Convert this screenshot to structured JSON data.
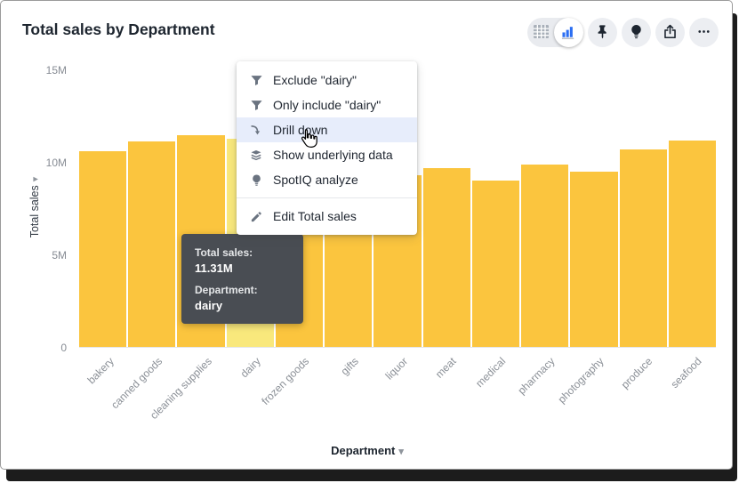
{
  "header": {
    "title": "Total sales by Department"
  },
  "toolbar": {
    "view_toggle": {
      "options": [
        {
          "name": "table-view",
          "icon": "table-icon",
          "selected": false
        },
        {
          "name": "chart-view",
          "icon": "bar-chart-icon",
          "selected": true
        }
      ]
    },
    "buttons": [
      {
        "name": "pin",
        "icon": "pin-icon"
      },
      {
        "name": "spotiq",
        "icon": "lightbulb-icon"
      },
      {
        "name": "share",
        "icon": "share-icon"
      },
      {
        "name": "more",
        "icon": "ellipsis-icon"
      }
    ]
  },
  "context_menu": {
    "items": [
      {
        "icon": "filter-icon",
        "label": "Exclude \"dairy\"",
        "highlighted": false
      },
      {
        "icon": "filter-icon",
        "label": "Only include \"dairy\"",
        "highlighted": false
      },
      {
        "icon": "drill-down-icon",
        "label": "Drill down",
        "highlighted": true
      },
      {
        "icon": "layers-icon",
        "label": "Show underlying data",
        "highlighted": false
      },
      {
        "icon": "lightbulb-icon",
        "label": "SpotIQ analyze",
        "highlighted": false
      },
      {
        "icon": "pencil-icon",
        "label": "Edit Total sales",
        "highlighted": false,
        "divider_before": true
      }
    ]
  },
  "tooltip": {
    "metric_label": "Total sales:",
    "metric_value": "11.31M",
    "dimension_label": "Department:",
    "dimension_value": "dairy"
  },
  "chart_data": {
    "type": "bar",
    "title": "Total sales by Department",
    "x_axis_title": "Department",
    "y_axis_title": "Total sales",
    "categories": [
      "bakery",
      "canned goods",
      "cleaning supplies",
      "dairy",
      "frozen goods",
      "gifts",
      "liquor",
      "meat",
      "medical",
      "pharmacy",
      "photography",
      "produce",
      "seafood"
    ],
    "values": [
      10.6,
      11.15,
      11.5,
      11.31,
      10.2,
      9.8,
      9.3,
      9.7,
      9.0,
      9.9,
      9.5,
      10.7,
      11.2
    ],
    "unit": "M",
    "ylim": [
      0,
      15
    ],
    "ytick_values": [
      0,
      5,
      10,
      15
    ],
    "ytick_labels": [
      "0",
      "5M",
      "10M",
      "15M"
    ],
    "highlighted_category": "dairy",
    "grid": false,
    "legend": false,
    "colors": {
      "bar": "#FBC53E",
      "highlighted_bar": "#F9E87C"
    }
  }
}
